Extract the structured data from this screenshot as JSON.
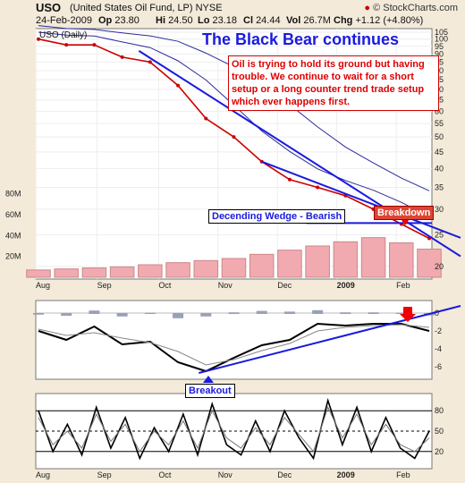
{
  "header": {
    "symbol": "USO",
    "name": "(United States Oil Fund, LP)  NYSE",
    "date": "24-Feb-2009",
    "open_label": "Op",
    "open": "23.80",
    "high_label": "Hi",
    "high": "24.50",
    "low_label": "Lo",
    "low": "23.18",
    "close_label": "Cl",
    "close": "24.44",
    "vol_label": "Vol",
    "vol": "26.7M",
    "chg_label": "Chg",
    "chg": "+1.12 (+4.80%)",
    "copyright": "© StockCharts.com",
    "price_label": "USO (Daily)"
  },
  "annotations": {
    "title": "The Black Bear continues",
    "note": "Oil is trying to hold its ground but having trouble. We continue to wait for a short setup or a long counter trend trade setup which ever happens first.",
    "wedge": "Decending Wedge - Bearish",
    "breakdown": "Breakdown",
    "breakout": "Breakout"
  },
  "colors": {
    "up": "#ffffff",
    "down": "#cc0000",
    "ma_fast": "#2a2a9a",
    "ma_slow": "#2a2a9a",
    "trend": "#1a1adf",
    "volume": "#f0aab0",
    "panel_bg": "#ffffff",
    "macd_hist": "#9aa0b8"
  },
  "chart_data": [
    {
      "type": "line",
      "panel": "price",
      "y_scale": "log",
      "ylim": [
        19,
        105
      ],
      "y_ticks": [
        105,
        100,
        95,
        90,
        85,
        80,
        75,
        70,
        65,
        60,
        55,
        50,
        45,
        40,
        35,
        30,
        25,
        20
      ],
      "x_tick_labels": [
        "Aug",
        "Sep",
        "Oct",
        "Nov",
        "Dec",
        "2009",
        "Feb"
      ],
      "x": [
        "Aug 1",
        "Aug 15",
        "Sep 1",
        "Sep 15",
        "Oct 1",
        "Oct 15",
        "Nov 1",
        "Nov 15",
        "Dec 1",
        "Dec 15",
        "Jan 1",
        "Jan 15",
        "Feb 1",
        "Feb 15",
        "Feb 24"
      ],
      "series": [
        {
          "values": [
            100,
            96,
            96,
            88,
            85,
            72,
            57,
            50,
            42,
            37,
            35,
            33,
            30,
            27,
            24.4
          ]
        }
      ],
      "volume_ticks": [
        "80M",
        "60M",
        "40M",
        "20M"
      ],
      "volume_values": [
        7,
        8,
        9,
        10,
        12,
        14,
        16,
        18,
        22,
        26,
        30,
        34,
        38,
        33,
        27
      ],
      "volume_unit": "M"
    },
    {
      "type": "line",
      "panel": "macd",
      "ylim": [
        -7,
        1
      ],
      "y_ticks": [
        0,
        -2,
        -4,
        -6
      ],
      "x": [
        "Aug 1",
        "Aug 15",
        "Sep 1",
        "Sep 15",
        "Oct 1",
        "Oct 15",
        "Nov 1",
        "Nov 15",
        "Dec 1",
        "Dec 15",
        "Jan 1",
        "Jan 15",
        "Feb 1",
        "Feb 15",
        "Feb 24"
      ],
      "series": [
        {
          "values": [
            -2.0,
            -3.0,
            -1.5,
            -3.5,
            -3.2,
            -5.5,
            -6.5,
            -5.0,
            -3.6,
            -3.0,
            -1.2,
            -1.4,
            -1.2,
            -1.2,
            -2.0
          ]
        },
        {
          "values": [
            -1.8,
            -2.5,
            -2.2,
            -2.8,
            -3.3,
            -4.3,
            -5.8,
            -5.2,
            -4.2,
            -3.4,
            -2.0,
            -1.6,
            -1.4,
            -1.3,
            -1.6
          ]
        }
      ]
    },
    {
      "type": "line",
      "panel": "stochastic",
      "ylim": [
        0,
        100
      ],
      "y_ticks": [
        80,
        50,
        20
      ],
      "x": [
        "Aug 1",
        "Aug 8",
        "Aug 15",
        "Aug 22",
        "Sep 1",
        "Sep 8",
        "Sep 15",
        "Sep 22",
        "Oct 1",
        "Oct 8",
        "Oct 15",
        "Oct 22",
        "Nov 1",
        "Nov 8",
        "Nov 15",
        "Nov 22",
        "Dec 1",
        "Dec 8",
        "Dec 15",
        "Dec 22",
        "Jan 1",
        "Jan 8",
        "Jan 15",
        "Jan 22",
        "Feb 1",
        "Feb 8",
        "Feb 15",
        "Feb 24"
      ],
      "series": [
        {
          "values": [
            80,
            20,
            60,
            15,
            85,
            25,
            70,
            10,
            55,
            20,
            75,
            15,
            90,
            30,
            15,
            65,
            20,
            80,
            40,
            10,
            95,
            30,
            85,
            20,
            70,
            25,
            10,
            50
          ]
        },
        {
          "values": [
            70,
            30,
            50,
            25,
            75,
            35,
            60,
            20,
            50,
            30,
            65,
            25,
            80,
            40,
            25,
            55,
            30,
            70,
            45,
            20,
            85,
            40,
            75,
            30,
            60,
            30,
            20,
            40
          ]
        }
      ]
    }
  ]
}
